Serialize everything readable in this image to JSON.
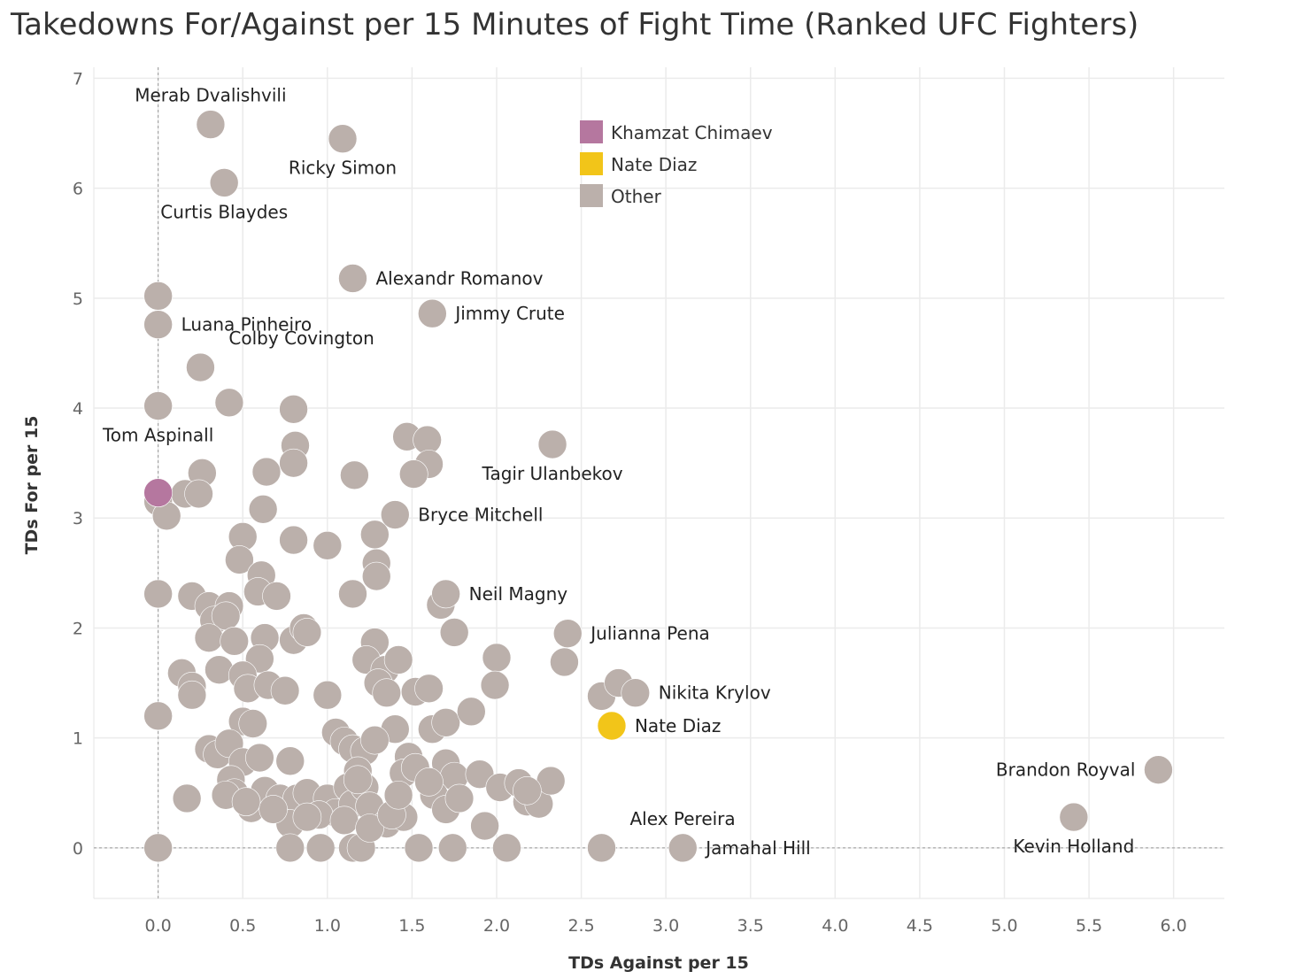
{
  "chart_data": {
    "type": "scatter",
    "title": "Takedowns For/Against per 15 Minutes of Fight Time (Ranked UFC Fighters)",
    "xlabel": "TDs Against per 15",
    "ylabel": "TDs For per 15",
    "xlim": [
      -0.38,
      6.3
    ],
    "ylim": [
      -0.46,
      7.1
    ],
    "x_ticks": [
      "0.0",
      "0.5",
      "1.0",
      "1.5",
      "2.0",
      "2.5",
      "3.0",
      "3.5",
      "4.0",
      "4.5",
      "5.0",
      "5.5",
      "6.0"
    ],
    "y_ticks": [
      "0",
      "1",
      "2",
      "3",
      "4",
      "5",
      "6",
      "7"
    ],
    "grid": true,
    "reference_lines": {
      "x": 0,
      "y": 0
    },
    "legend": {
      "placement": "top-center",
      "entries": [
        {
          "name": "Khamzat Chimaev",
          "color": "#b5779f"
        },
        {
          "name": "Nate Diaz",
          "color": "#f2c519"
        },
        {
          "name": "Other",
          "color": "#bbb0ab"
        }
      ]
    },
    "labeled_points": [
      {
        "name": "Merab Dvalishvili",
        "x": 0.31,
        "y": 6.58,
        "group": "Other",
        "label_pos": "above"
      },
      {
        "name": "Ricky Simon",
        "x": 1.09,
        "y": 6.45,
        "group": "Other",
        "label_pos": "below"
      },
      {
        "name": "Curtis Blaydes",
        "x": 0.39,
        "y": 6.05,
        "group": "Other",
        "label_pos": "below"
      },
      {
        "name": "Alexandr Romanov",
        "x": 1.15,
        "y": 5.18,
        "group": "Other",
        "label_pos": "right"
      },
      {
        "name": "Jimmy Crute",
        "x": 1.62,
        "y": 4.86,
        "group": "Other",
        "label_pos": "right"
      },
      {
        "name": "Luana Pinheiro",
        "x": 0.0,
        "y": 4.76,
        "group": "Other",
        "label_pos": "right"
      },
      {
        "name": "Colby Covington",
        "x": 0.25,
        "y": 4.37,
        "group": "Other",
        "label_pos": "above-right"
      },
      {
        "name": "Tom Aspinall",
        "x": 0.0,
        "y": 4.02,
        "group": "Other",
        "label_pos": "below"
      },
      {
        "name": "Khamzat Chimaev",
        "x": 0.0,
        "y": 3.23,
        "group": "Khamzat Chimaev",
        "label_pos": "none"
      },
      {
        "name": "Tagir Ulanbekov",
        "x": 2.33,
        "y": 3.67,
        "group": "Other",
        "label_pos": "below"
      },
      {
        "name": "Bryce Mitchell",
        "x": 1.4,
        "y": 3.03,
        "group": "Other",
        "label_pos": "right"
      },
      {
        "name": "Neil Magny",
        "x": 1.7,
        "y": 2.31,
        "group": "Other",
        "label_pos": "right"
      },
      {
        "name": "Julianna Pena",
        "x": 2.42,
        "y": 1.95,
        "group": "Other",
        "label_pos": "right"
      },
      {
        "name": "Nikita Krylov",
        "x": 2.82,
        "y": 1.41,
        "group": "Other",
        "label_pos": "right"
      },
      {
        "name": "Nate Diaz",
        "x": 2.68,
        "y": 1.11,
        "group": "Nate Diaz",
        "label_pos": "right"
      },
      {
        "name": "Brandon Royval",
        "x": 5.91,
        "y": 0.71,
        "group": "Other",
        "label_pos": "left"
      },
      {
        "name": "Kevin Holland",
        "x": 5.41,
        "y": 0.28,
        "group": "Other",
        "label_pos": "below"
      },
      {
        "name": "Alex Pereira",
        "x": 2.62,
        "y": 0.0,
        "group": "Other",
        "label_pos": "above-right"
      },
      {
        "name": "Jamahal Hill",
        "x": 3.1,
        "y": 0.0,
        "group": "Other",
        "label_pos": "right"
      }
    ],
    "other_points": [
      [
        0.0,
        5.02
      ],
      [
        0.26,
        3.41
      ],
      [
        0.42,
        4.05
      ],
      [
        0.8,
        3.99
      ],
      [
        0.81,
        3.66
      ],
      [
        0.8,
        3.5
      ],
      [
        0.64,
        3.42
      ],
      [
        1.16,
        3.39
      ],
      [
        1.47,
        3.74
      ],
      [
        1.59,
        3.71
      ],
      [
        1.6,
        3.49
      ],
      [
        1.51,
        3.4
      ],
      [
        0.16,
        3.22
      ],
      [
        0.24,
        3.22
      ],
      [
        0.0,
        3.15
      ],
      [
        0.05,
        3.02
      ],
      [
        0.62,
        3.08
      ],
      [
        0.5,
        2.83
      ],
      [
        0.8,
        2.8
      ],
      [
        1.0,
        2.75
      ],
      [
        1.28,
        2.85
      ],
      [
        0.48,
        2.62
      ],
      [
        0.61,
        2.48
      ],
      [
        1.29,
        2.59
      ],
      [
        1.29,
        2.47
      ],
      [
        0.0,
        2.31
      ],
      [
        0.2,
        2.29
      ],
      [
        0.3,
        2.2
      ],
      [
        0.42,
        2.2
      ],
      [
        0.33,
        2.07
      ],
      [
        0.4,
        2.11
      ],
      [
        0.59,
        2.33
      ],
      [
        0.7,
        2.29
      ],
      [
        1.15,
        2.31
      ],
      [
        1.67,
        2.21
      ],
      [
        0.3,
        1.91
      ],
      [
        0.45,
        1.88
      ],
      [
        0.63,
        1.91
      ],
      [
        0.8,
        1.89
      ],
      [
        0.86,
        2.0
      ],
      [
        0.88,
        1.96
      ],
      [
        1.75,
        1.96
      ],
      [
        1.28,
        1.87
      ],
      [
        0.36,
        1.62
      ],
      [
        0.6,
        1.72
      ],
      [
        0.14,
        1.59
      ],
      [
        0.2,
        1.47
      ],
      [
        0.2,
        1.39
      ],
      [
        0.5,
        1.57
      ],
      [
        0.53,
        1.45
      ],
      [
        0.65,
        1.48
      ],
      [
        0.75,
        1.43
      ],
      [
        1.0,
        1.39
      ],
      [
        1.23,
        1.71
      ],
      [
        1.34,
        1.62
      ],
      [
        1.3,
        1.5
      ],
      [
        1.35,
        1.41
      ],
      [
        1.42,
        1.71
      ],
      [
        1.52,
        1.42
      ],
      [
        1.6,
        1.45
      ],
      [
        2.0,
        1.73
      ],
      [
        1.99,
        1.48
      ],
      [
        2.4,
        1.69
      ],
      [
        2.62,
        1.38
      ],
      [
        2.72,
        1.5
      ],
      [
        0.0,
        1.2
      ],
      [
        0.5,
        1.15
      ],
      [
        0.56,
        1.13
      ],
      [
        1.05,
        1.05
      ],
      [
        1.1,
        0.97
      ],
      [
        1.15,
        0.9
      ],
      [
        1.4,
        1.08
      ],
      [
        1.62,
        1.08
      ],
      [
        1.7,
        1.14
      ],
      [
        1.85,
        1.24
      ],
      [
        0.3,
        0.9
      ],
      [
        0.35,
        0.85
      ],
      [
        0.42,
        0.95
      ],
      [
        0.5,
        0.78
      ],
      [
        0.6,
        0.82
      ],
      [
        0.78,
        0.79
      ],
      [
        1.22,
        0.88
      ],
      [
        1.28,
        0.98
      ],
      [
        1.18,
        0.7
      ],
      [
        1.48,
        0.83
      ],
      [
        1.45,
        0.68
      ],
      [
        1.52,
        0.73
      ],
      [
        1.7,
        0.77
      ],
      [
        1.75,
        0.65
      ],
      [
        1.9,
        0.67
      ],
      [
        0.43,
        0.62
      ],
      [
        0.45,
        0.5
      ],
      [
        0.55,
        0.36
      ],
      [
        0.63,
        0.52
      ],
      [
        0.72,
        0.45
      ],
      [
        0.82,
        0.45
      ],
      [
        0.88,
        0.5
      ],
      [
        1.0,
        0.45
      ],
      [
        1.05,
        0.32
      ],
      [
        1.12,
        0.55
      ],
      [
        1.15,
        0.4
      ],
      [
        1.22,
        0.55
      ],
      [
        1.25,
        0.38
      ],
      [
        1.35,
        0.22
      ],
      [
        1.45,
        0.28
      ],
      [
        1.63,
        0.48
      ],
      [
        1.7,
        0.35
      ],
      [
        1.78,
        0.45
      ],
      [
        2.02,
        0.55
      ],
      [
        2.13,
        0.59
      ],
      [
        2.18,
        0.42
      ],
      [
        2.25,
        0.4
      ],
      [
        2.32,
        0.61
      ],
      [
        2.18,
        0.52
      ],
      [
        0.17,
        0.45
      ],
      [
        0.78,
        0.22
      ],
      [
        1.6,
        0.6
      ],
      [
        0.0,
        0.0
      ],
      [
        0.78,
        0.0
      ],
      [
        0.96,
        0.0
      ],
      [
        1.15,
        0.0
      ],
      [
        1.2,
        0.0
      ],
      [
        1.54,
        0.0
      ],
      [
        1.74,
        0.0
      ],
      [
        2.06,
        0.0
      ],
      [
        1.93,
        0.2
      ],
      [
        0.4,
        0.48
      ],
      [
        0.52,
        0.42
      ],
      [
        0.95,
        0.3
      ],
      [
        1.1,
        0.25
      ],
      [
        1.25,
        0.18
      ],
      [
        0.88,
        0.28
      ],
      [
        0.68,
        0.35
      ],
      [
        1.38,
        0.3
      ],
      [
        1.18,
        0.62
      ],
      [
        1.42,
        0.48
      ]
    ]
  }
}
